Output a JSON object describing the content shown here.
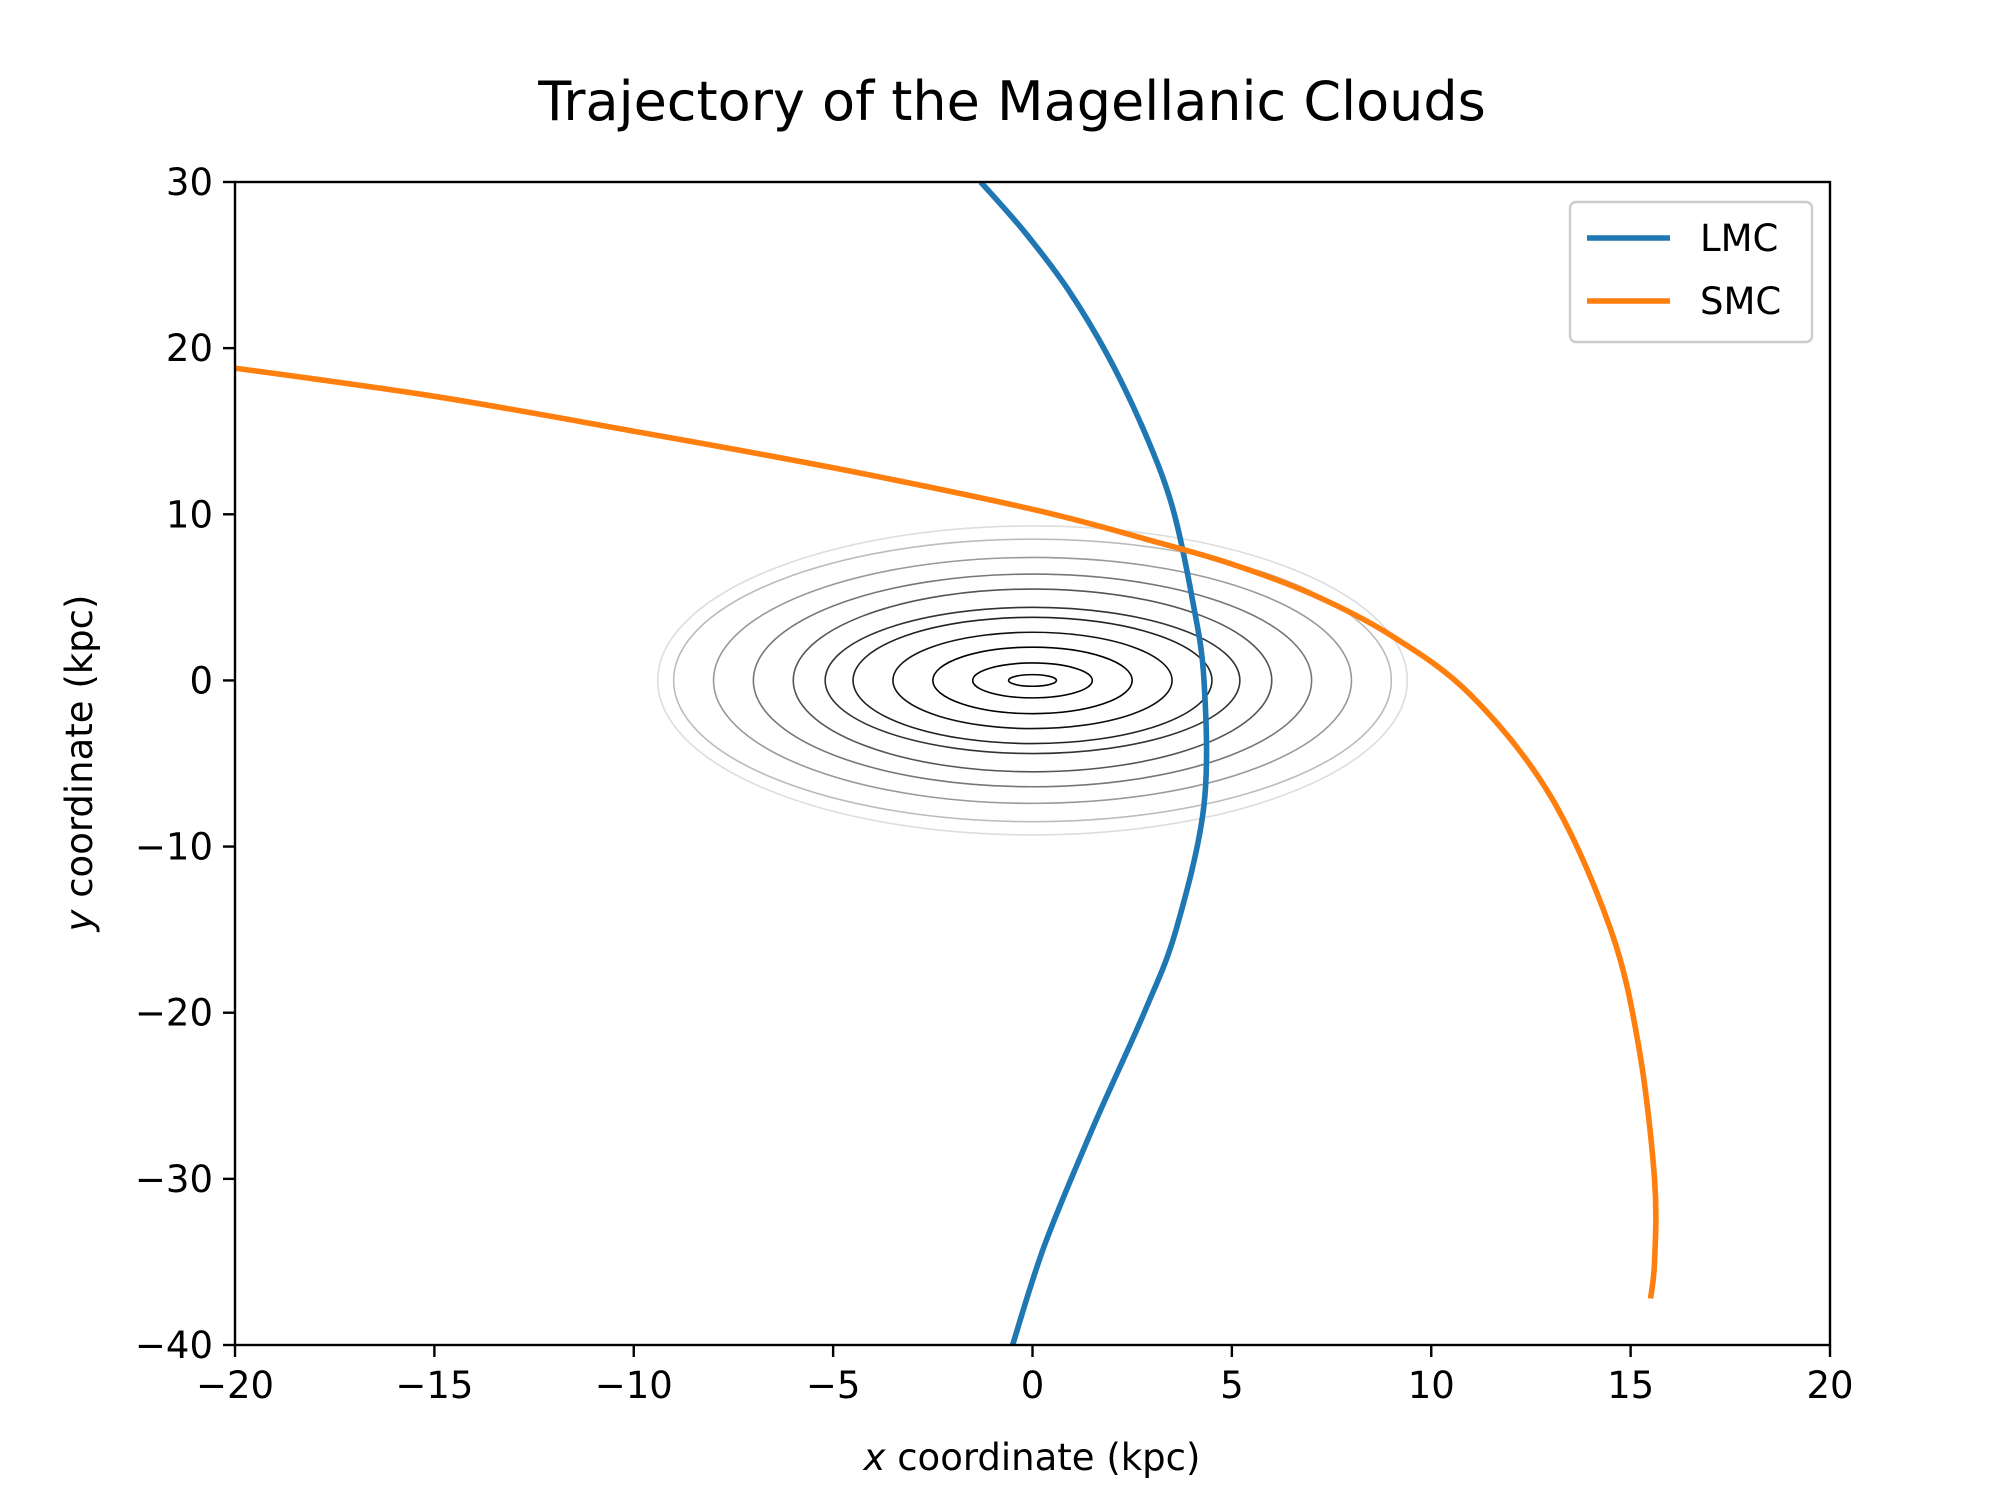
{
  "chart_data": {
    "type": "line",
    "title": "Trajectory of the Magellanic Clouds",
    "xlabel_var": "x",
    "xlabel_rest": " coordinate (kpc)",
    "ylabel_var": "y",
    "ylabel_rest": " coordinate (kpc)",
    "xlim": [
      -20,
      20
    ],
    "ylim": [
      -40,
      30
    ],
    "xticks": [
      -20,
      -15,
      -10,
      -5,
      0,
      5,
      10,
      15,
      20
    ],
    "yticks": [
      -40,
      -30,
      -20,
      -10,
      0,
      10,
      20,
      30
    ],
    "legend_position": "top-right",
    "grid": false,
    "series": [
      {
        "name": "LMC",
        "color": "#1f77b4",
        "points": [
          [
            -1.3,
            30
          ],
          [
            -0.2,
            27
          ],
          [
            0.9,
            23.5
          ],
          [
            1.9,
            19.5
          ],
          [
            2.8,
            15
          ],
          [
            3.5,
            10.5
          ],
          [
            4.0,
            5
          ],
          [
            4.3,
            0
          ],
          [
            4.3,
            -7.5
          ],
          [
            3.6,
            -15
          ],
          [
            2.8,
            -20
          ],
          [
            1.5,
            -27
          ],
          [
            0.3,
            -34
          ],
          [
            -0.5,
            -40
          ]
        ]
      },
      {
        "name": "SMC",
        "color": "#ff7f0e",
        "points": [
          [
            -20,
            18.8
          ],
          [
            -15,
            17.1
          ],
          [
            -10,
            15.0
          ],
          [
            -5,
            12.8
          ],
          [
            0,
            10.3
          ],
          [
            3,
            8.4
          ],
          [
            5,
            7.0
          ],
          [
            7,
            5.2
          ],
          [
            9,
            2.7
          ],
          [
            11,
            -0.9
          ],
          [
            13,
            -7
          ],
          [
            14.5,
            -15
          ],
          [
            15.2,
            -22
          ],
          [
            15.6,
            -30
          ],
          [
            15.6,
            -35
          ],
          [
            15.5,
            -37.2
          ]
        ]
      }
    ],
    "contours": {
      "center": [
        0,
        0
      ],
      "x_semi_axes": [
        0.6,
        1.5,
        2.5,
        3.5,
        4.5,
        5.2,
        6.0,
        7.0,
        8.0,
        9.0,
        9.4
      ],
      "y_semi_axes": [
        0.35,
        1.05,
        2.0,
        2.9,
        3.8,
        4.4,
        5.5,
        6.4,
        7.4,
        8.5,
        9.3
      ],
      "gray_levels": [
        "#000000",
        "#000000",
        "#000000",
        "#111111",
        "#222222",
        "#333333",
        "#555555",
        "#777777",
        "#999999",
        "#bbbbbb",
        "#dddddd"
      ]
    }
  }
}
